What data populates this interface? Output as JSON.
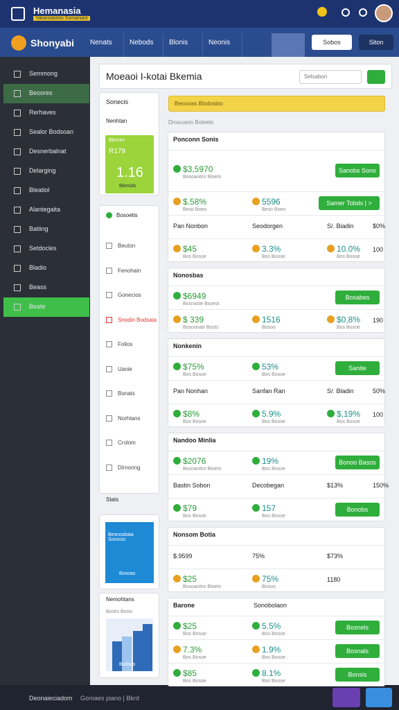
{
  "header": {
    "title": "Hemanasia",
    "subtitle": "Yakaroatotos Somaniast"
  },
  "nav": {
    "brand": "Shonyabi",
    "tabs": [
      "Nenats",
      "Nebods",
      "Blonis",
      "Neonis"
    ],
    "buttons": [
      "Sobos",
      "Siton"
    ]
  },
  "sidebar": [
    "Semmong",
    "Beoores",
    "Rerhaves",
    "Sealor Bodsoan",
    "Desnerbalnat",
    "Delarging",
    "Bleatiol",
    "Alantegaita",
    "Batiing",
    "Setdocles",
    "Bladio",
    "Beass",
    "Beate"
  ],
  "page": {
    "title": "Moeaoi I-kotai Bkemia",
    "select": "Selsabon"
  },
  "left": {
    "filter_title": "Sonecis",
    "dropdown": "Nenhtan",
    "tile": {
      "label": "Bkesim",
      "value": "R179",
      "big": "1.16",
      "caption": "Bkesids"
    },
    "list_title": "Bosoetis",
    "list": [
      "Beuton",
      "Fenohain",
      "Gonecios",
      "Snodin Bodsaia",
      "Folios",
      "Uanie",
      "Bonats",
      "Norhtans",
      "Crolom",
      "Dirnonng"
    ],
    "list_footer": "Stats",
    "promo": {
      "title": "Besnosbaia Sonocio",
      "label": "Bosoas"
    },
    "chart": {
      "title": "Nemohtans",
      "legend": "Bosks Bosis",
      "label": "Bodsas"
    }
  },
  "main": {
    "banner": "Bessoias Blodosbio",
    "subtitle": "Droscaion Boleets",
    "cards": [
      {
        "title": "Ponconn Sonis",
        "rows": [
          {
            "cells": [
              {
                "value": "$3,5970",
                "sub": "Bosoanitro Bloeto"
              }
            ],
            "button": "Sanobs Sono"
          },
          {
            "cells": [
              {
                "value": "$.58%",
                "sub": "Beso Boeo"
              },
              {
                "value": "5596",
                "sub": "Beso Boeo"
              }
            ],
            "button": "Samer Tobds | >"
          },
          {
            "cells": [
              {
                "value": "Pan Nonbon"
              },
              {
                "value": "Seodorgen"
              },
              {
                "value": "S/. Biadin"
              },
              {
                "value": "$0%"
              }
            ]
          },
          {
            "cells": [
              {
                "value": "$45",
                "sub": "Bos Bosoe"
              },
              {
                "value": "3.3%",
                "sub": "Bos Bosoe"
              },
              {
                "value": "10.0%",
                "sub": "Bos Bosoe"
              },
              {
                "value": "100"
              }
            ]
          }
        ]
      },
      {
        "title": "Nonosbas",
        "rows": [
          {
            "cells": [
              {
                "value": "$6949",
                "sub": "Bosnaste Bsoest"
              }
            ],
            "button": "Bosabes"
          },
          {
            "cells": [
              {
                "value": "$ 339",
                "sub": "Bosoonatr Bosts"
              },
              {
                "value": "1516",
                "sub": "Bosoo"
              },
              {
                "value": "$0,8%",
                "sub": "Bos Bosoe"
              },
              {
                "value": "190"
              }
            ]
          }
        ]
      },
      {
        "title": "Nonkenin",
        "rows": [
          {
            "cells": [
              {
                "value": "$75%",
                "sub": "Bos Bosoe"
              },
              {
                "value": "53%",
                "sub": "Bos Bosoe"
              }
            ],
            "button": "Sanite"
          },
          {
            "cells": [
              {
                "value": "Pan Nonhan"
              },
              {
                "value": "Sanfan Ran"
              },
              {
                "value": "S/. Bladin"
              },
              {
                "value": "50%"
              }
            ]
          },
          {
            "cells": [
              {
                "value": "$8%",
                "sub": "Bos Bosoe"
              },
              {
                "value": "5.9%",
                "sub": "Bos Bosoe"
              },
              {
                "value": "$,19%",
                "sub": "Bos Bosoe"
              },
              {
                "value": "100"
              }
            ]
          }
        ]
      },
      {
        "title": "Nandoo Minlia",
        "rows": [
          {
            "cells": [
              {
                "value": "$2076",
                "sub": "Bosoanitro Bloeto"
              },
              {
                "value": "19%",
                "sub": "Bos Bosoe"
              }
            ],
            "button": "Bonoo Basos"
          },
          {
            "cells": [
              {
                "value": "Bastin Sobon"
              },
              {
                "value": "Decobegan"
              },
              {
                "value": "$13%"
              },
              {
                "value": "150%"
              }
            ]
          },
          {
            "cells": [
              {
                "value": "$79",
                "sub": "Bos Bosoe"
              },
              {
                "value": "157",
                "sub": "Bos Bosoe"
              }
            ],
            "button": "Bonobs"
          }
        ]
      },
      {
        "title": "Nonsom Botia",
        "rows": [
          {
            "cells": [
              {
                "value": "$.9599"
              },
              {
                "value": "75%"
              },
              {
                "value": "$73%"
              }
            ]
          },
          {
            "cells": [
              {
                "value": "$25",
                "sub": "Bosoanitro Bloeto"
              },
              {
                "value": "75%",
                "sub": "Bosoo"
              },
              {
                "value": "1180"
              }
            ]
          }
        ]
      },
      {
        "title": "Barone",
        "title2": "Sonobolaon",
        "rows": [
          {
            "cells": [
              {
                "value": "$25",
                "sub": "Bos Bosoe"
              },
              {
                "value": "5.5%",
                "sub": "Bos Bosoe"
              }
            ],
            "button": "Bosnels"
          },
          {
            "cells": [
              {
                "value": "7.3%",
                "sub": "Bos Bosoe"
              },
              {
                "value": "1.9%",
                "sub": "Bos Bosoe"
              }
            ],
            "button": "Bosnals"
          },
          {
            "cells": [
              {
                "value": "$85",
                "sub": "Bos Bosoe"
              },
              {
                "value": "8.1%",
                "sub": "Bos Bosoe"
              }
            ],
            "button": "Bonsis"
          }
        ]
      }
    ]
  },
  "footer": {
    "brand": "Deonaieciadom",
    "text": "Goroaes piano | Bkrd"
  }
}
